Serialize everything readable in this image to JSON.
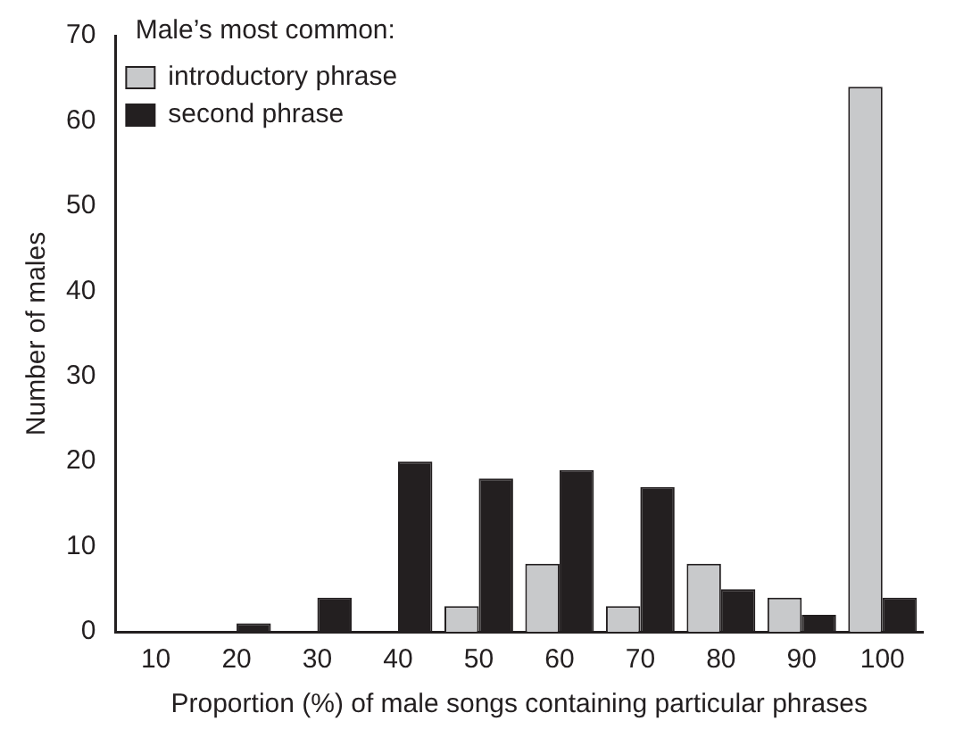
{
  "chart_data": {
    "type": "bar",
    "xlabel": "Proportion (%) of male songs containing particular phrases",
    "ylabel": "Number of males",
    "legend_title": "Male’s most common:",
    "categories": [
      "10",
      "20",
      "30",
      "40",
      "50",
      "60",
      "70",
      "80",
      "90",
      "100"
    ],
    "series": [
      {
        "name": "introductory phrase",
        "color": "#c8c9cb",
        "values": [
          0,
          0,
          0,
          0,
          3,
          8,
          3,
          8,
          4,
          64
        ]
      },
      {
        "name": "second phrase",
        "color": "#231f20",
        "values": [
          0,
          1,
          4,
          20,
          18,
          19,
          17,
          5,
          2,
          4
        ]
      }
    ],
    "ylim": [
      0,
      70
    ],
    "yticks": [
      0,
      10,
      20,
      30,
      40,
      50,
      60,
      70
    ],
    "grid": false,
    "legend": "top left"
  }
}
